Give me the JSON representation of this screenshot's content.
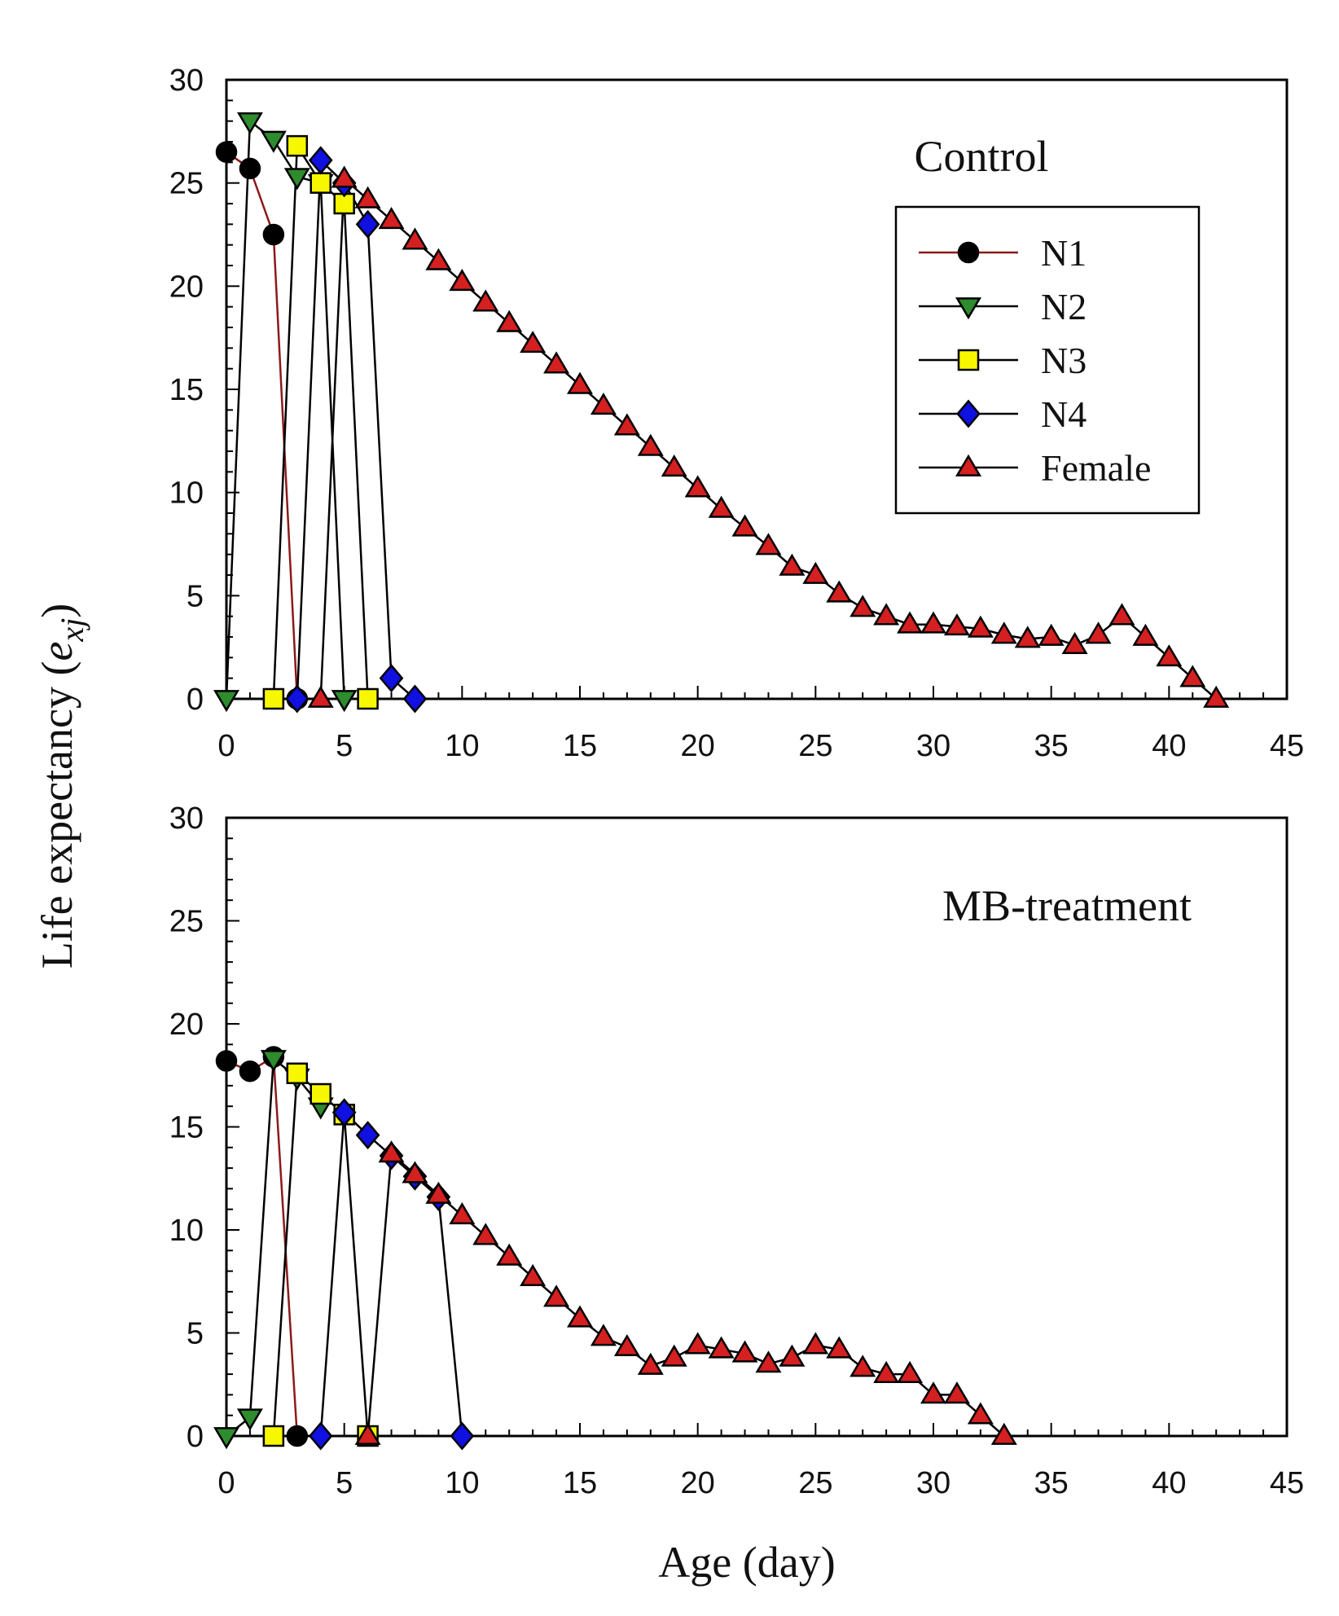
{
  "chart_data": {
    "type": "line",
    "ylabel_main": "Life expectancy (",
    "ylabel_e": "e",
    "ylabel_sub": "xj",
    "ylabel_close": ")",
    "xlabel": "Age (day)",
    "xlim": [
      0,
      45
    ],
    "ylim": [
      0,
      30
    ],
    "xticks": [
      0,
      5,
      10,
      15,
      20,
      25,
      30,
      35,
      40,
      45
    ],
    "yticks": [
      0,
      5,
      10,
      15,
      20,
      25,
      30
    ],
    "legend": [
      {
        "name": "N1",
        "marker": "circle",
        "fill": "#000000",
        "line": "#8b1a1a"
      },
      {
        "name": "N2",
        "marker": "triangle-down",
        "fill": "#2e8b2e",
        "line": "#000000"
      },
      {
        "name": "N3",
        "marker": "square",
        "fill": "#f7f700",
        "line": "#000000"
      },
      {
        "name": "N4",
        "marker": "diamond",
        "fill": "#1010e0",
        "line": "#000000"
      },
      {
        "name": "Female",
        "marker": "triangle-up",
        "fill": "#d42020",
        "line": "#000000"
      }
    ],
    "panels": [
      {
        "title": "Control",
        "series": [
          {
            "name": "N1",
            "x": [
              0,
              1,
              2,
              3
            ],
            "y": [
              26.5,
              25.7,
              22.5,
              0
            ]
          },
          {
            "name": "N2",
            "x": [
              0,
              1,
              2,
              3,
              4,
              5
            ],
            "y": [
              0,
              28.0,
              27.1,
              25.3,
              25.0,
              0
            ]
          },
          {
            "name": "N3",
            "x": [
              2,
              3,
              4,
              5,
              6
            ],
            "y": [
              0,
              26.8,
              25.0,
              24.0,
              0
            ]
          },
          {
            "name": "N4",
            "x": [
              3,
              4,
              5,
              6,
              7,
              8
            ],
            "y": [
              0,
              26.1,
              25.0,
              23.0,
              1.0,
              0
            ]
          },
          {
            "name": "Female",
            "x": [
              4,
              5,
              6,
              7,
              8,
              9,
              10,
              11,
              12,
              13,
              14,
              15,
              16,
              17,
              18,
              19,
              20,
              21,
              22,
              23,
              24,
              25,
              26,
              27,
              28,
              29,
              30,
              31,
              32,
              33,
              34,
              35,
              36,
              37,
              38,
              39,
              40,
              41,
              42
            ],
            "y": [
              0,
              25.2,
              24.2,
              23.2,
              22.2,
              21.2,
              20.2,
              19.2,
              18.2,
              17.2,
              16.2,
              15.2,
              14.2,
              13.2,
              12.2,
              11.2,
              10.2,
              9.2,
              8.3,
              7.4,
              6.4,
              6.0,
              5.1,
              4.4,
              4.0,
              3.6,
              3.6,
              3.5,
              3.4,
              3.1,
              2.9,
              3.0,
              2.6,
              3.1,
              4.0,
              3.0,
              2.0,
              1.0,
              0
            ]
          }
        ]
      },
      {
        "title": "MB-treatment",
        "series": [
          {
            "name": "N1",
            "x": [
              0,
              1,
              2,
              3
            ],
            "y": [
              18.2,
              17.7,
              18.4,
              0
            ]
          },
          {
            "name": "N2",
            "x": [
              0,
              1,
              2,
              3,
              4
            ],
            "y": [
              0,
              0.9,
              18.3,
              17.4,
              16.0
            ]
          },
          {
            "name": "N3",
            "x": [
              2,
              3,
              4,
              5,
              6
            ],
            "y": [
              0,
              17.6,
              16.6,
              15.6,
              0
            ]
          },
          {
            "name": "N4",
            "x": [
              4,
              5,
              6,
              7,
              8,
              9,
              10
            ],
            "y": [
              0,
              15.7,
              14.6,
              13.6,
              12.6,
              11.6,
              0
            ]
          },
          {
            "name": "Female",
            "x": [
              6,
              7,
              8,
              9,
              10,
              11,
              12,
              13,
              14,
              15,
              16,
              17,
              18,
              19,
              20,
              21,
              22,
              23,
              24,
              25,
              26,
              27,
              28,
              29,
              30,
              31,
              32,
              33
            ],
            "y": [
              0,
              13.7,
              12.7,
              11.7,
              10.7,
              9.7,
              8.7,
              7.7,
              6.7,
              5.7,
              4.8,
              4.3,
              3.4,
              3.8,
              4.4,
              4.2,
              4.0,
              3.5,
              3.8,
              4.4,
              4.2,
              3.3,
              3.0,
              3.0,
              2.0,
              2.0,
              1.0,
              0
            ]
          }
        ]
      }
    ]
  }
}
